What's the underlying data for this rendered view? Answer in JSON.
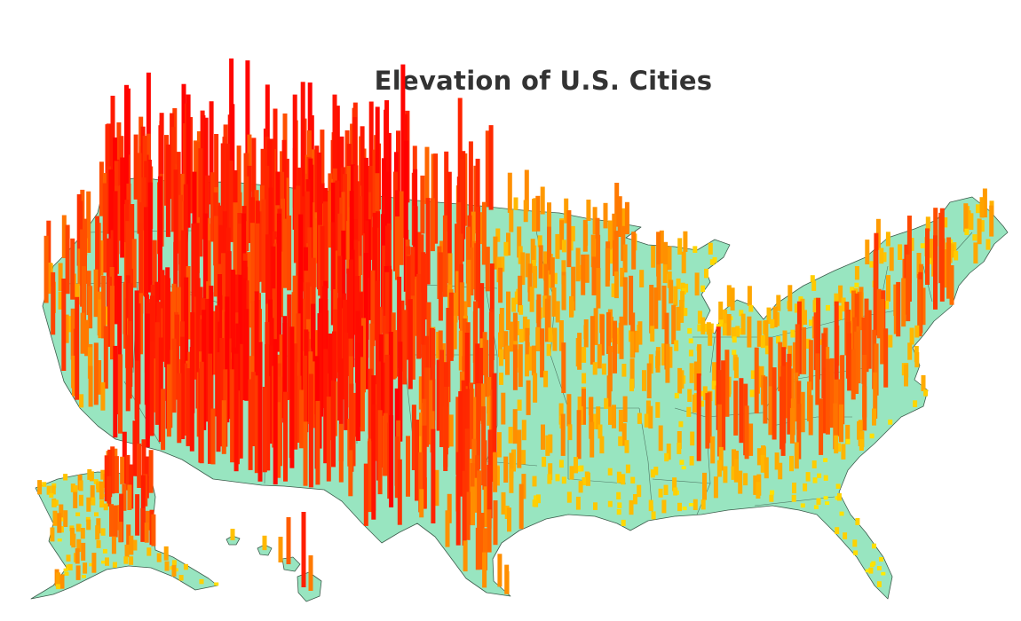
{
  "title": "Elevation of U.S. Cities",
  "colors": {
    "land": "#98e5c0",
    "border": "#3d5c4c",
    "low": "#ffff00",
    "mid": "#ff9900",
    "high": "#ff0000",
    "background": "#ffffff"
  },
  "legend": "none",
  "map": {
    "regions": [
      "contiguous-us",
      "alaska",
      "hawaii"
    ],
    "encoding": "bar height and color represent city elevation (yellow = low, orange = mid, red = high)"
  }
}
